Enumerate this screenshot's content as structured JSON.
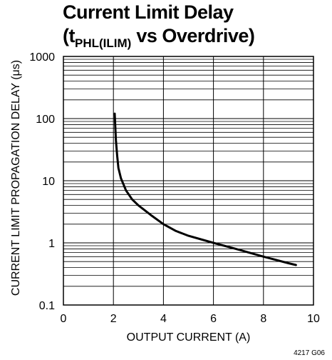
{
  "chart_data": {
    "type": "line",
    "title_line1": "Current Limit Delay",
    "title_line2_prefix": "(t",
    "title_line2_sub": "PHL(ILIM)",
    "title_line2_suffix": " vs Overdrive)",
    "xlabel": "OUTPUT CURRENT (A)",
    "ylabel": "CURRENT LIMIT PROPAGATION DELAY (μs)",
    "x_scale": "linear",
    "y_scale": "log",
    "xlim": [
      0,
      10
    ],
    "ylim": [
      0.1,
      1000
    ],
    "x_ticks": [
      "0",
      "2",
      "4",
      "6",
      "8",
      "10"
    ],
    "y_ticks": [
      "0.1",
      "1",
      "10",
      "100",
      "1000"
    ],
    "grid": true,
    "series": [
      {
        "points": [
          [
            2.05,
            120
          ],
          [
            2.1,
            45
          ],
          [
            2.15,
            25
          ],
          [
            2.2,
            16
          ],
          [
            2.3,
            11
          ],
          [
            2.5,
            7
          ],
          [
            2.75,
            5
          ],
          [
            3.0,
            4
          ],
          [
            3.5,
            2.8
          ],
          [
            4.0,
            2.0
          ],
          [
            4.5,
            1.55
          ],
          [
            5.0,
            1.3
          ],
          [
            6.0,
            1.0
          ],
          [
            7.0,
            0.78
          ],
          [
            8.0,
            0.6
          ],
          [
            9.0,
            0.47
          ],
          [
            9.3,
            0.44
          ]
        ]
      }
    ],
    "figure_id": "4217 G06"
  }
}
